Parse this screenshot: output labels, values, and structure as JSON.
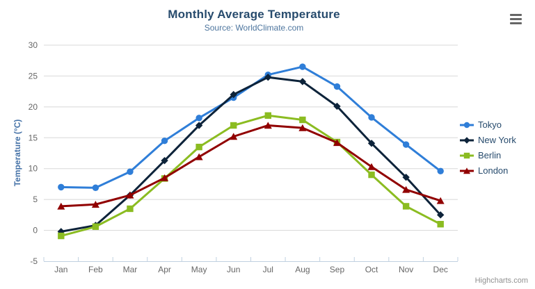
{
  "chart_data": {
    "type": "line",
    "title": "Monthly Average Temperature",
    "subtitle": "Source: WorldClimate.com",
    "xlabel": "",
    "ylabel": "Temperature (°C)",
    "ylim": [
      -5,
      30
    ],
    "tick_interval": 5,
    "grid": true,
    "legend_position": "right",
    "categories": [
      "Jan",
      "Feb",
      "Mar",
      "Apr",
      "May",
      "Jun",
      "Jul",
      "Aug",
      "Sep",
      "Oct",
      "Nov",
      "Dec"
    ],
    "series": [
      {
        "name": "Tokyo",
        "marker": "circle",
        "color": "#2f7ed8",
        "values": [
          7.0,
          6.9,
          9.5,
          14.5,
          18.2,
          21.5,
          25.2,
          26.5,
          23.3,
          18.3,
          13.9,
          9.6
        ]
      },
      {
        "name": "New York",
        "marker": "diamond",
        "color": "#0d233a",
        "values": [
          -0.2,
          0.8,
          5.7,
          11.3,
          17.0,
          22.0,
          24.8,
          24.1,
          20.1,
          14.1,
          8.6,
          2.5
        ]
      },
      {
        "name": "Berlin",
        "marker": "square",
        "color": "#8bbc21",
        "values": [
          -0.9,
          0.6,
          3.5,
          8.4,
          13.5,
          17.0,
          18.6,
          17.9,
          14.3,
          9.0,
          3.9,
          1.0
        ]
      },
      {
        "name": "London",
        "marker": "triangle",
        "color": "#910000",
        "values": [
          3.9,
          4.2,
          5.7,
          8.5,
          11.9,
          15.2,
          17.0,
          16.6,
          14.2,
          10.3,
          6.6,
          4.8
        ]
      }
    ]
  },
  "credits": {
    "label": "Highcharts.com"
  },
  "toolbar": {
    "menu_icon": "hamburger-menu-icon"
  },
  "colors": {
    "background": "#ffffff",
    "title": "#274b6d",
    "subtitle": "#4d759e",
    "axis_title": "#4572a7",
    "axis_labels": "#666666",
    "grid": "#d8d8d8",
    "axis_line": "#c0d0e0",
    "tick": "#c0d0e0",
    "legend_text": "#274b6d",
    "credits": "#909090",
    "menu_icon": "#666666"
  }
}
